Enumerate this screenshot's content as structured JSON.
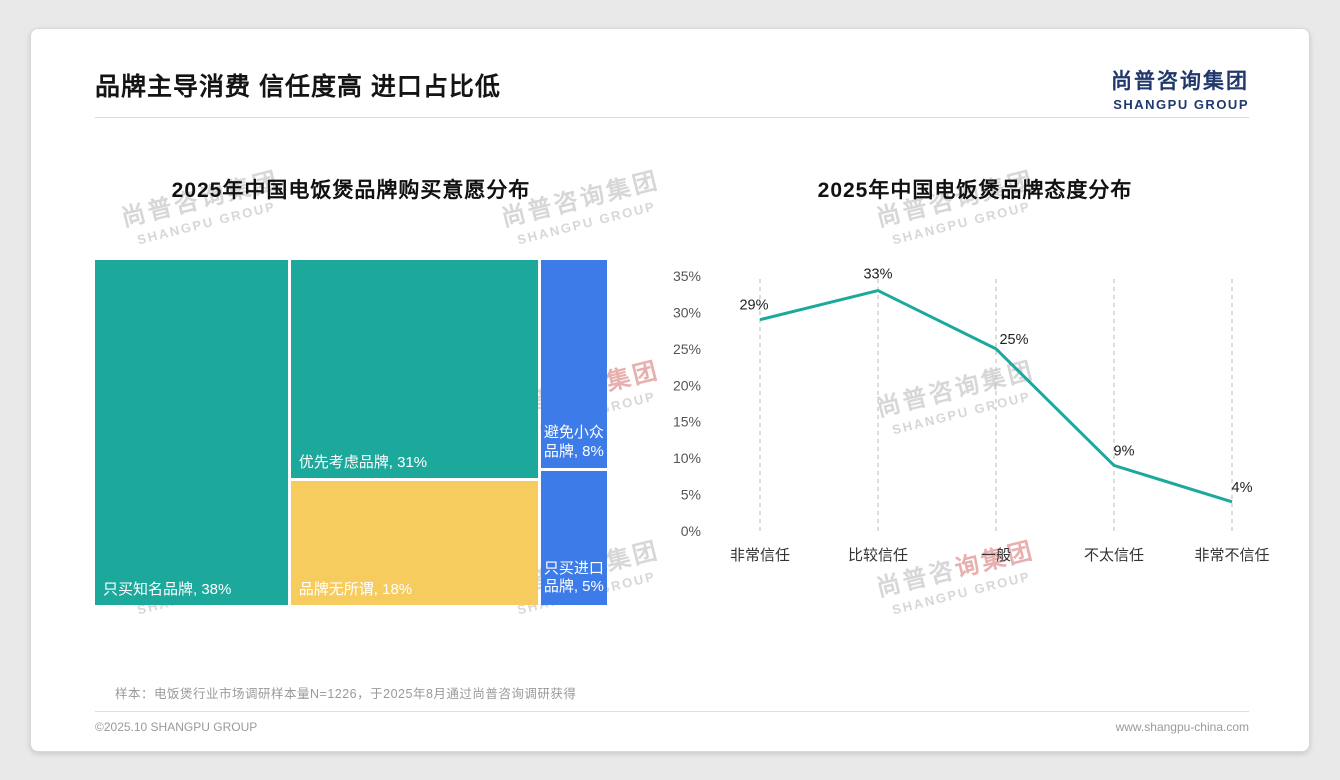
{
  "slide": {
    "title": "品牌主导消费 信任度高 进口占比低",
    "logo_cn": "尚普咨询集团",
    "logo_en": "SHANGPU GROUP",
    "sample_note": "样本：电饭煲行业市场调研样本量N=1226，于2025年8月通过尚普咨询调研获得",
    "copyright": "©2025.10 SHANGPU GROUP",
    "website": "www.shangpu-china.com",
    "watermark_cn": "尚普咨询集团",
    "watermark_en": "SHANGPU GROUP"
  },
  "colors": {
    "teal": "#1CA99C",
    "yellow": "#F7CC5F",
    "blue": "#3D7CE8",
    "navy": "#20386b"
  },
  "chart_data": [
    {
      "type": "treemap",
      "title": "2025年中国电饭煲品牌购买意愿分布",
      "items": [
        {
          "label": "只买知名品牌",
          "value": 38,
          "display": "只买知名品牌, 38%",
          "color": "#1CA99C"
        },
        {
          "label": "优先考虑品牌",
          "value": 31,
          "display": "优先考虑品牌, 31%",
          "color": "#1CA99C"
        },
        {
          "label": "品牌无所谓",
          "value": 18,
          "display": "品牌无所谓, 18%",
          "color": "#F7CC5F"
        },
        {
          "label": "避免小众品牌",
          "value": 8,
          "display": "避免小众品牌, 8%",
          "color": "#3D7CE8"
        },
        {
          "label": "只买进口品牌",
          "value": 5,
          "display": "只买进口品牌, 5%",
          "color": "#3D7CE8"
        }
      ]
    },
    {
      "type": "line",
      "title": "2025年中国电饭煲品牌态度分布",
      "categories": [
        "非常信任",
        "比较信任",
        "一般",
        "不太信任",
        "非常不信任"
      ],
      "values": [
        29,
        33,
        25,
        9,
        4
      ],
      "value_labels": [
        "29%",
        "33%",
        "25%",
        "9%",
        "4%"
      ],
      "ylim": [
        0,
        35
      ],
      "ytick_step": 5,
      "ytick_labels": [
        "0%",
        "5%",
        "10%",
        "15%",
        "20%",
        "25%",
        "30%",
        "35%"
      ],
      "line_color": "#1CA99C",
      "grid": "vertical-dashed",
      "legend": "none"
    }
  ]
}
